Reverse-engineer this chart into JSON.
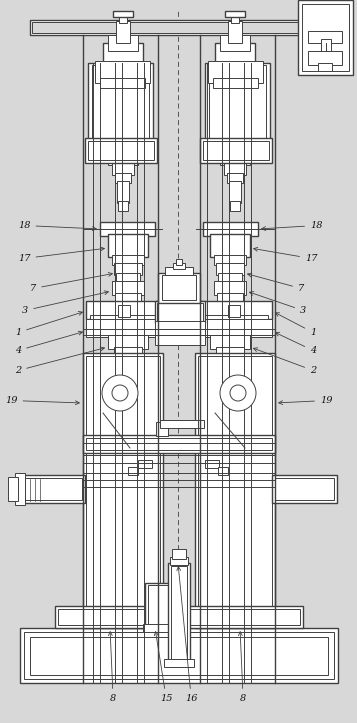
{
  "bg_color": "#d8d8d8",
  "line_color": "#404040",
  "white": "#ffffff",
  "fig_width": 3.57,
  "fig_height": 7.23,
  "dpi": 100
}
